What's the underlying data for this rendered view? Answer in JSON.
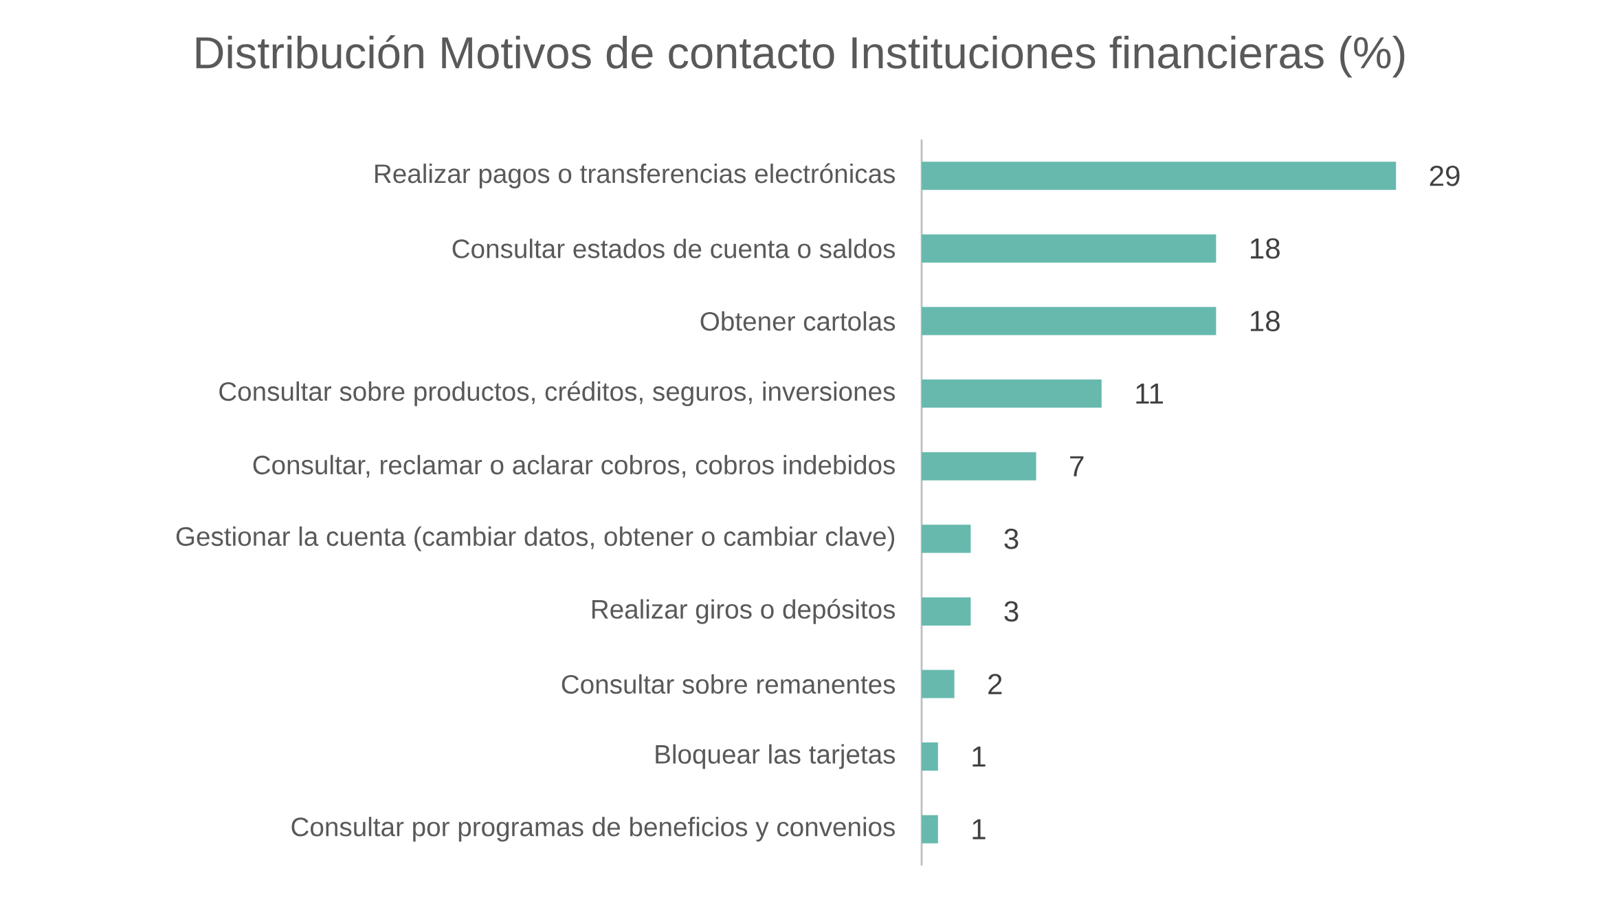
{
  "chart_data": {
    "type": "bar",
    "orientation": "horizontal",
    "title": "Distribución Motivos de contacto Instituciones financieras (%)",
    "categories": [
      "Realizar pagos o transferencias electrónicas",
      "Consultar estados de cuenta o saldos",
      "Obtener cartolas",
      "Consultar sobre productos, créditos, seguros, inversiones",
      "Consultar, reclamar o aclarar cobros, cobros indebidos",
      "Gestionar la cuenta (cambiar datos, obtener o cambiar clave)",
      "Realizar giros o depósitos",
      "Consultar sobre remanentes",
      "Bloquear las tarjetas",
      "Consultar por programas de beneficios y convenios"
    ],
    "values": [
      29,
      18,
      18,
      11,
      7,
      3,
      3,
      2,
      1,
      1
    ],
    "color": "#67b9ae",
    "data_labels": true
  }
}
